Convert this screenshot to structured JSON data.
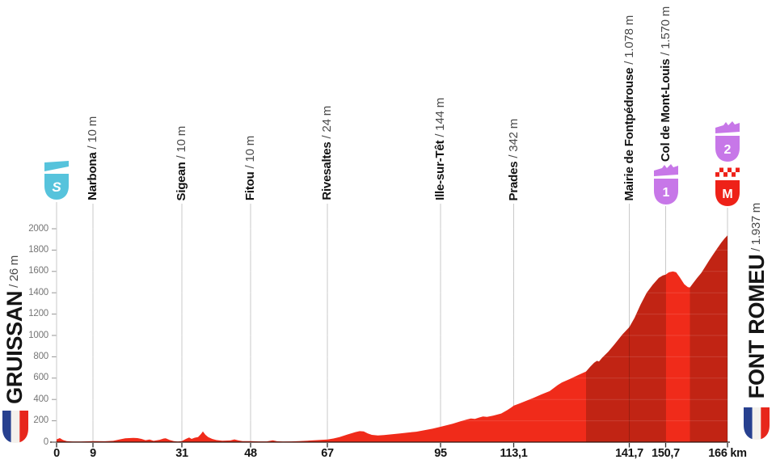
{
  "chart_data": {
    "type": "area",
    "x_unit": "km",
    "xlim": [
      0,
      166
    ],
    "ylim": [
      0,
      2200
    ],
    "grid": "vertical-at-waypoints",
    "y_ticks": [
      0,
      200,
      400,
      600,
      800,
      1000,
      1200,
      1400,
      1600,
      1800,
      2000
    ],
    "x_ticks": [
      {
        "label": "0",
        "km": 0
      },
      {
        "label": "9",
        "km": 9
      },
      {
        "label": "31",
        "km": 31
      },
      {
        "label": "48",
        "km": 48
      },
      {
        "label": "67",
        "km": 67
      },
      {
        "label": "95",
        "km": 95
      },
      {
        "label": "113,1",
        "km": 113.1
      },
      {
        "label": "141,7",
        "km": 141.7
      },
      {
        "label": "150,7",
        "km": 150.7
      },
      {
        "label": "166 km",
        "km": 166
      }
    ],
    "start": {
      "name": "GRUISSAN",
      "elevation_text": " / 26 m",
      "elevation_m": 26,
      "km": 0,
      "badge": "S"
    },
    "finish": {
      "name": "FONT ROMEU",
      "elevation_text": " / 1.937 m",
      "elevation_m": 1937,
      "km": 166,
      "badges": [
        "2",
        "M"
      ]
    },
    "waypoints": [
      {
        "name": "Narbona",
        "elevation_text": " / 10 m",
        "km": 9
      },
      {
        "name": "Sigean",
        "elevation_text": " / 10 m",
        "km": 31
      },
      {
        "name": "Fitou",
        "elevation_text": " / 10 m",
        "km": 48
      },
      {
        "name": "Rivesaltes",
        "elevation_text": " / 24 m",
        "km": 67
      },
      {
        "name": "Ille-sur-Têt",
        "elevation_text": " / 144 m",
        "km": 95
      },
      {
        "name": "Prades",
        "elevation_text": " / 342 m",
        "km": 113.1
      },
      {
        "name": "Mairie de Fontpédrouse",
        "elevation_text": " / 1.078 m",
        "km": 141.7
      },
      {
        "name": "Col de Mont-Louis",
        "elevation_text": " / 1.570 m",
        "km": 150.7,
        "badge": "1"
      }
    ],
    "badges": [
      {
        "letter": "S",
        "km": 0,
        "style": "start",
        "top": 197
      },
      {
        "letter": "1",
        "km": 150.7,
        "style": "cat",
        "top": 203
      },
      {
        "letter": "2",
        "km": 166,
        "style": "cat",
        "top": 150
      },
      {
        "letter": "M",
        "km": 166,
        "style": "finish",
        "top": 205
      }
    ],
    "segments": [
      {
        "from": 0,
        "to": 131,
        "shade": "bright"
      },
      {
        "from": 131,
        "to": 150.7,
        "shade": "dark"
      },
      {
        "from": 150.7,
        "to": 156.7,
        "shade": "bright"
      },
      {
        "from": 156.7,
        "to": 166,
        "shade": "dark"
      }
    ],
    "profile": [
      [
        0,
        26
      ],
      [
        0.8,
        38
      ],
      [
        1.6,
        20
      ],
      [
        2.5,
        10
      ],
      [
        4,
        6
      ],
      [
        6,
        6
      ],
      [
        9,
        10
      ],
      [
        12,
        8
      ],
      [
        14,
        12
      ],
      [
        16,
        28
      ],
      [
        17,
        36
      ],
      [
        19,
        40
      ],
      [
        20,
        38
      ],
      [
        21,
        30
      ],
      [
        22,
        18
      ],
      [
        23,
        24
      ],
      [
        24,
        12
      ],
      [
        25.5,
        22
      ],
      [
        26.5,
        34
      ],
      [
        27,
        36
      ],
      [
        28,
        20
      ],
      [
        29,
        10
      ],
      [
        30,
        6
      ],
      [
        31,
        10
      ],
      [
        32,
        30
      ],
      [
        32.8,
        44
      ],
      [
        33.4,
        30
      ],
      [
        34.2,
        42
      ],
      [
        35,
        48
      ],
      [
        35.7,
        75
      ],
      [
        36.2,
        100
      ],
      [
        36.8,
        70
      ],
      [
        37.5,
        48
      ],
      [
        38.5,
        30
      ],
      [
        39.5,
        20
      ],
      [
        41,
        14
      ],
      [
        43,
        16
      ],
      [
        44,
        26
      ],
      [
        45,
        16
      ],
      [
        46,
        10
      ],
      [
        48,
        10
      ],
      [
        50,
        7
      ],
      [
        52,
        7
      ],
      [
        53.5,
        17
      ],
      [
        54.5,
        8
      ],
      [
        56,
        6
      ],
      [
        58,
        7
      ],
      [
        60,
        9
      ],
      [
        62,
        14
      ],
      [
        64,
        18
      ],
      [
        67,
        24
      ],
      [
        68.5,
        34
      ],
      [
        70,
        48
      ],
      [
        72,
        72
      ],
      [
        74,
        95
      ],
      [
        75,
        103
      ],
      [
        76,
        100
      ],
      [
        77,
        82
      ],
      [
        78,
        68
      ],
      [
        79.5,
        62
      ],
      [
        81,
        66
      ],
      [
        83,
        74
      ],
      [
        85,
        82
      ],
      [
        87,
        90
      ],
      [
        89,
        98
      ],
      [
        91,
        112
      ],
      [
        93,
        126
      ],
      [
        95,
        144
      ],
      [
        96.5,
        158
      ],
      [
        98,
        172
      ],
      [
        100,
        196
      ],
      [
        101.5,
        212
      ],
      [
        102.5,
        222
      ],
      [
        103.5,
        218
      ],
      [
        104.5,
        230
      ],
      [
        105.5,
        240
      ],
      [
        106.5,
        236
      ],
      [
        108,
        248
      ],
      [
        110,
        268
      ],
      [
        111.5,
        300
      ],
      [
        112.5,
        325
      ],
      [
        113.1,
        342
      ],
      [
        114.5,
        362
      ],
      [
        116,
        385
      ],
      [
        118,
        415
      ],
      [
        120,
        448
      ],
      [
        122,
        478
      ],
      [
        124,
        535
      ],
      [
        125,
        558
      ],
      [
        127,
        592
      ],
      [
        129,
        628
      ],
      [
        131,
        662
      ],
      [
        132,
        705
      ],
      [
        133,
        745
      ],
      [
        133.7,
        762
      ],
      [
        134.2,
        756
      ],
      [
        135,
        792
      ],
      [
        136.5,
        848
      ],
      [
        138,
        915
      ],
      [
        140,
        1010
      ],
      [
        141.7,
        1078
      ],
      [
        143,
        1165
      ],
      [
        144.5,
        1290
      ],
      [
        146,
        1400
      ],
      [
        147.5,
        1475
      ],
      [
        149,
        1540
      ],
      [
        150,
        1562
      ],
      [
        150.7,
        1570
      ],
      [
        151.5,
        1592
      ],
      [
        152.5,
        1600
      ],
      [
        153.3,
        1592
      ],
      [
        154.2,
        1545
      ],
      [
        155.3,
        1480
      ],
      [
        156.2,
        1452
      ],
      [
        156.7,
        1450
      ],
      [
        157.5,
        1490
      ],
      [
        158.5,
        1540
      ],
      [
        159.5,
        1585
      ],
      [
        160.5,
        1645
      ],
      [
        161.5,
        1705
      ],
      [
        162.5,
        1762
      ],
      [
        163.5,
        1818
      ],
      [
        164.5,
        1872
      ],
      [
        165.3,
        1910
      ],
      [
        166,
        1937
      ]
    ]
  },
  "colors": {
    "fill_bright": "#f02b1a",
    "fill_dark": "#c12414",
    "gridline": "#c9c9c9",
    "hline_over_fill": "rgba(255,255,255,0.13)",
    "axis": "rgba(42,21,16,0.82)",
    "xtick": "#2e2e2e",
    "ytick": "#969696",
    "start_badge": "#56c3dc",
    "climb_badge": "#c777e8",
    "finish_badge": "#ee2118",
    "flag_blue": "#27408f",
    "flag_white": "#f4f1ec",
    "flag_red": "#e7261c"
  }
}
